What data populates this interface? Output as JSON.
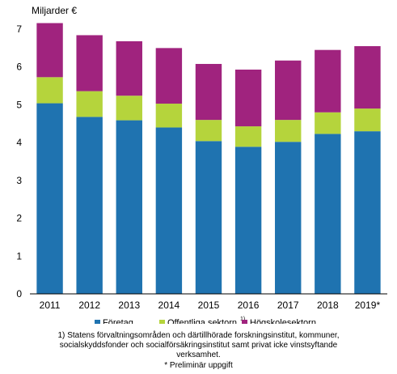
{
  "chart_data": {
    "type": "bar",
    "stacked": true,
    "ylabel": "Miljarder €",
    "categories": [
      "2011",
      "2012",
      "2013",
      "2014",
      "2015",
      "2016",
      "2017",
      "2018",
      "2019*"
    ],
    "ylim": [
      0,
      7
    ],
    "yticks": [
      0,
      1,
      2,
      3,
      4,
      5,
      6,
      7
    ],
    "grid": false,
    "legend_position": "bottom",
    "series": [
      {
        "name": "Företag",
        "color": "#1f73b0",
        "values": [
          5.04,
          4.68,
          4.59,
          4.4,
          4.04,
          3.89,
          4.02,
          4.23,
          4.3
        ]
      },
      {
        "name": "Offentliga sektorn",
        "name_suffix": "1)",
        "color": "#b5d43c",
        "values": [
          0.69,
          0.68,
          0.65,
          0.63,
          0.56,
          0.54,
          0.58,
          0.57,
          0.6
        ]
      },
      {
        "name": "Högskolesektorn",
        "color": "#a0237e",
        "values": [
          1.43,
          1.48,
          1.44,
          1.47,
          1.48,
          1.5,
          1.57,
          1.65,
          1.65
        ]
      }
    ]
  },
  "footnotes": {
    "line1_marker": "1)",
    "line1_text": "Statens förvaltningsområden och därtillhörade forskningsinstitut, kommuner,",
    "line2": "socialskyddsfonder och socialförsäkringsinstitut samt privat icke vinstsyftande",
    "line3": "verksamhet.",
    "line4": "* Preliminär  uppgift"
  }
}
